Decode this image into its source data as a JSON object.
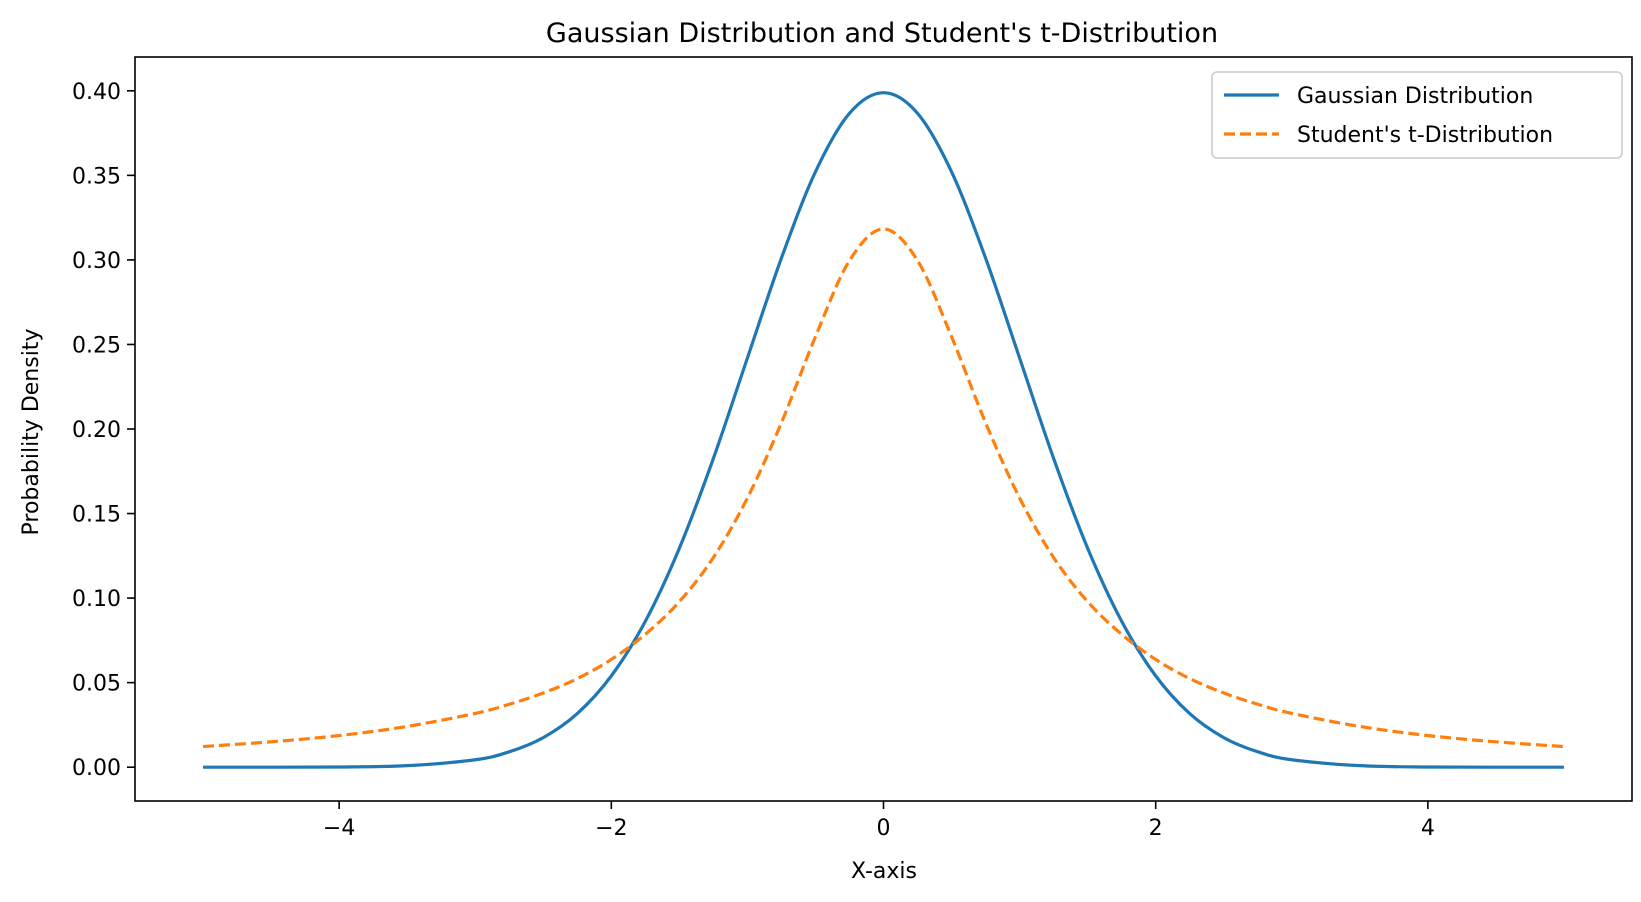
{
  "chart_data": {
    "type": "line",
    "title": "Gaussian Distribution and Student's t-Distribution",
    "xlabel": "X-axis",
    "ylabel": "Probability Density",
    "xlim": [
      -5.5,
      5.5
    ],
    "ylim": [
      -0.02,
      0.42
    ],
    "grid": false,
    "legend_position": "top-right",
    "x": [
      -5,
      -4.5,
      -4,
      -3.5,
      -3,
      -2.75,
      -2.5,
      -2.25,
      -2,
      -1.75,
      -1.5,
      -1.25,
      -1,
      -0.75,
      -0.5,
      -0.25,
      0,
      0.25,
      0.5,
      0.75,
      1,
      1.25,
      1.5,
      1.75,
      2,
      2.25,
      2.5,
      2.75,
      3,
      3.5,
      4,
      4.5,
      5
    ],
    "series": [
      {
        "name": "Gaussian Distribution",
        "color": "#1f77b4",
        "style": "solid",
        "values": [
          0.0,
          0.0,
          0.0001,
          0.0009,
          0.0044,
          0.0091,
          0.0175,
          0.0317,
          0.054,
          0.0863,
          0.1295,
          0.1826,
          0.242,
          0.3011,
          0.3521,
          0.3867,
          0.3989,
          0.3867,
          0.3521,
          0.3011,
          0.242,
          0.1826,
          0.1295,
          0.0863,
          0.054,
          0.0317,
          0.0175,
          0.0091,
          0.0044,
          0.0009,
          0.0001,
          0.0,
          0.0
        ]
      },
      {
        "name": "Student's t-Distribution",
        "color": "#ff7f0e",
        "style": "dashed",
        "values": [
          0.0122,
          0.015,
          0.0187,
          0.0241,
          0.0318,
          0.0372,
          0.0439,
          0.0524,
          0.0637,
          0.0786,
          0.0979,
          0.124,
          0.1592,
          0.2037,
          0.2546,
          0.2996,
          0.3183,
          0.2996,
          0.2546,
          0.2037,
          0.1592,
          0.124,
          0.0979,
          0.0786,
          0.0637,
          0.0524,
          0.0439,
          0.0372,
          0.0318,
          0.0241,
          0.0187,
          0.015,
          0.0122
        ]
      }
    ],
    "x_ticks": [
      -4,
      -2,
      0,
      2,
      4
    ],
    "x_tick_labels": [
      "−4",
      "−2",
      "0",
      "2",
      "4"
    ],
    "y_ticks": [
      0.0,
      0.05,
      0.1,
      0.15,
      0.2,
      0.25,
      0.3,
      0.35,
      0.4
    ],
    "y_tick_labels": [
      "0.00",
      "0.05",
      "0.10",
      "0.15",
      "0.20",
      "0.25",
      "0.30",
      "0.35",
      "0.40"
    ]
  }
}
